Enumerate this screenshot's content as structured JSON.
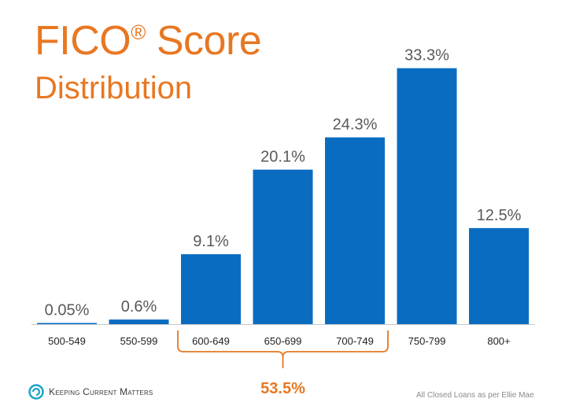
{
  "title": {
    "main": "FICO",
    "reg": "®",
    "main_suffix": " Score",
    "sub": "Distribution"
  },
  "colors": {
    "bar": "#0a6cc1",
    "accent": "#e87722",
    "axis": "#c8c8c8",
    "value_text": "#595959",
    "tick_text": "#222222"
  },
  "chart_data": {
    "type": "bar",
    "categories": [
      "500-549",
      "550-599",
      "600-649",
      "650-699",
      "700-749",
      "750-799",
      "800+"
    ],
    "values": [
      0.05,
      0.6,
      9.1,
      20.1,
      24.3,
      33.3,
      12.5
    ],
    "value_labels": [
      "0.05%",
      "0.6%",
      "9.1%",
      "20.1%",
      "24.3%",
      "33.3%",
      "12.5%"
    ],
    "bracket": {
      "categories": [
        "600-649",
        "650-699",
        "700-749"
      ],
      "label": "53.5%"
    }
  },
  "footer": {
    "logo_text": "Keeping Current Matters",
    "source": "All Closed Loans as per Ellie Mae"
  }
}
